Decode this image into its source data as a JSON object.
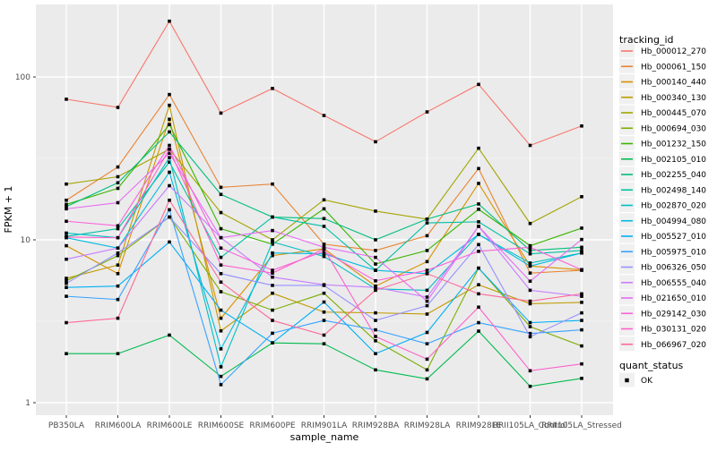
{
  "figure": {
    "title": "",
    "y_axis_title": "FPKM + 1",
    "x_axis_title": "sample_name",
    "legend_title": "tracking_id",
    "quant_legend_title": "quant_status",
    "quant_legend_item": "OK"
  },
  "colors": {
    "panel_bg": "#EBEBEB",
    "grid_major": "#FFFFFF",
    "grid_minor": "#F5F5F5",
    "tick_label": "#4D4D4D",
    "axis_title": "#000000",
    "legend_key_bg": "#F0F0F0",
    "marker": "#000000"
  },
  "chart_data": {
    "type": "line",
    "title": "",
    "xlabel": "sample_name",
    "ylabel": "FPKM + 1",
    "y_scale": "log10",
    "ylim": [
      1,
      250
    ],
    "y_ticks": [
      1,
      10,
      100
    ],
    "y_minor_ticks": [
      3.162,
      31.62
    ],
    "grid": true,
    "legend_position": "right",
    "legend_title": "tracking_id",
    "quant_status_legend": {
      "title": "quant_status",
      "items": [
        "OK"
      ],
      "marker": "black-square"
    },
    "categories": [
      "PB350LA",
      "RRIM600LA",
      "RRIM600LE",
      "RRIM600SE",
      "RRIM600PE",
      "RRIM901LA",
      "RRIM928BA",
      "RRIM928LA",
      "RRIM928LE",
      "RRII105LA_Control",
      "RRII105LA_Stressed"
    ],
    "series": [
      {
        "name": "Hb_000012_270",
        "color": "#F8766D",
        "values": [
          73,
          65,
          220,
          60,
          85,
          58,
          40,
          61,
          90,
          38,
          50
        ]
      },
      {
        "name": "Hb_000061_150",
        "color": "#EA8331",
        "values": [
          17.5,
          28,
          78,
          21,
          22,
          9.4,
          8.6,
          10.6,
          27.4,
          6.25,
          6.5
        ]
      },
      {
        "name": "Hb_000140_440",
        "color": "#D89000",
        "values": [
          9.2,
          6.2,
          55,
          3.3,
          8,
          8.8,
          5.2,
          7.35,
          22.2,
          6.9,
          6.55
        ]
      },
      {
        "name": "Hb_000340_130",
        "color": "#C09B00",
        "values": [
          5.8,
          7,
          67,
          2.76,
          4.7,
          3.6,
          3.56,
          3.5,
          5.3,
          4.05,
          4.13
        ]
      },
      {
        "name": "Hb_000445_070",
        "color": "#A3A500",
        "values": [
          22,
          24.4,
          36,
          14.7,
          10,
          17.6,
          15,
          13.4,
          36.5,
          12.6,
          18.4
        ]
      },
      {
        "name": "Hb_000694_030",
        "color": "#7CAE00",
        "values": [
          5.6,
          8,
          13.8,
          4.8,
          3.7,
          4.7,
          2.4,
          1.59,
          6.7,
          2.93,
          2.23
        ]
      },
      {
        "name": "Hb_001232_150",
        "color": "#39B600",
        "values": [
          16.5,
          20.7,
          51,
          11.7,
          9.4,
          15.5,
          7.1,
          8.6,
          15.4,
          9.2,
          11.8
        ]
      },
      {
        "name": "Hb_002105_010",
        "color": "#00BB4E",
        "values": [
          2,
          2,
          2.6,
          1.45,
          2.33,
          2.3,
          1.59,
          1.4,
          2.75,
          1.26,
          1.41
        ]
      },
      {
        "name": "Hb_002255_040",
        "color": "#00BF7D",
        "values": [
          16,
          22.4,
          46,
          19,
          13.8,
          13.5,
          10,
          13.4,
          16.6,
          8.6,
          9
        ]
      },
      {
        "name": "Hb_002498_140",
        "color": "#00C1A3",
        "values": [
          10.5,
          11.7,
          30,
          7.8,
          13.8,
          12.1,
          6.5,
          12.7,
          12.9,
          8.2,
          8.6
        ]
      },
      {
        "name": "Hb_002870_020",
        "color": "#00BFC4",
        "values": [
          11,
          10.3,
          32,
          1.66,
          9.7,
          7.9,
          5,
          4.9,
          10.8,
          7.2,
          8.3
        ]
      },
      {
        "name": "Hb_004994_080",
        "color": "#00BAE0",
        "values": [
          10.3,
          8.9,
          26,
          2.14,
          8.3,
          8.2,
          6.5,
          6.2,
          10.8,
          6.9,
          8.3
        ]
      },
      {
        "name": "Hb_005527_010",
        "color": "#00B0F6",
        "values": [
          5.1,
          5.2,
          9.7,
          3.7,
          2.33,
          4.15,
          2,
          2.7,
          6.7,
          3.1,
          3.2
        ]
      },
      {
        "name": "Hb_005975_010",
        "color": "#35A2FF",
        "values": [
          4.5,
          4.3,
          15.3,
          1.29,
          2.67,
          3.2,
          2.8,
          2.3,
          3.1,
          2.66,
          2.8
        ]
      },
      {
        "name": "Hb_006326_050",
        "color": "#9590FF",
        "values": [
          5.4,
          8.3,
          13.8,
          6.2,
          5.25,
          5.25,
          3.2,
          3.94,
          9.35,
          2.54,
          3.56
        ]
      },
      {
        "name": "Hb_006555_040",
        "color": "#C77CFF",
        "values": [
          7.6,
          8.9,
          21.5,
          10.3,
          5.9,
          5.3,
          5.1,
          4.45,
          12.1,
          4.9,
          4.5
        ]
      },
      {
        "name": "Hb_021650_010",
        "color": "#E76BF3",
        "values": [
          15.5,
          16.9,
          34,
          10.3,
          11.4,
          9,
          7.8,
          4.2,
          12.1,
          5.57,
          10.05
        ]
      },
      {
        "name": "Hb_029142_030",
        "color": "#FA62DB",
        "values": [
          13,
          12.2,
          38,
          8.9,
          6.5,
          8.5,
          5.6,
          6.5,
          8.5,
          9,
          6.55
        ]
      },
      {
        "name": "Hb_030131_020",
        "color": "#FF61CC",
        "values": [
          10.4,
          10.3,
          36,
          7,
          6.25,
          8.8,
          2.55,
          1.85,
          3.86,
          1.57,
          1.73
        ]
      },
      {
        "name": "Hb_066967_020",
        "color": "#FF6A98",
        "values": [
          3.1,
          3.3,
          17.5,
          5.5,
          3.2,
          2.6,
          4.9,
          6.2,
          4.66,
          4.2,
          4.66
        ]
      }
    ]
  }
}
